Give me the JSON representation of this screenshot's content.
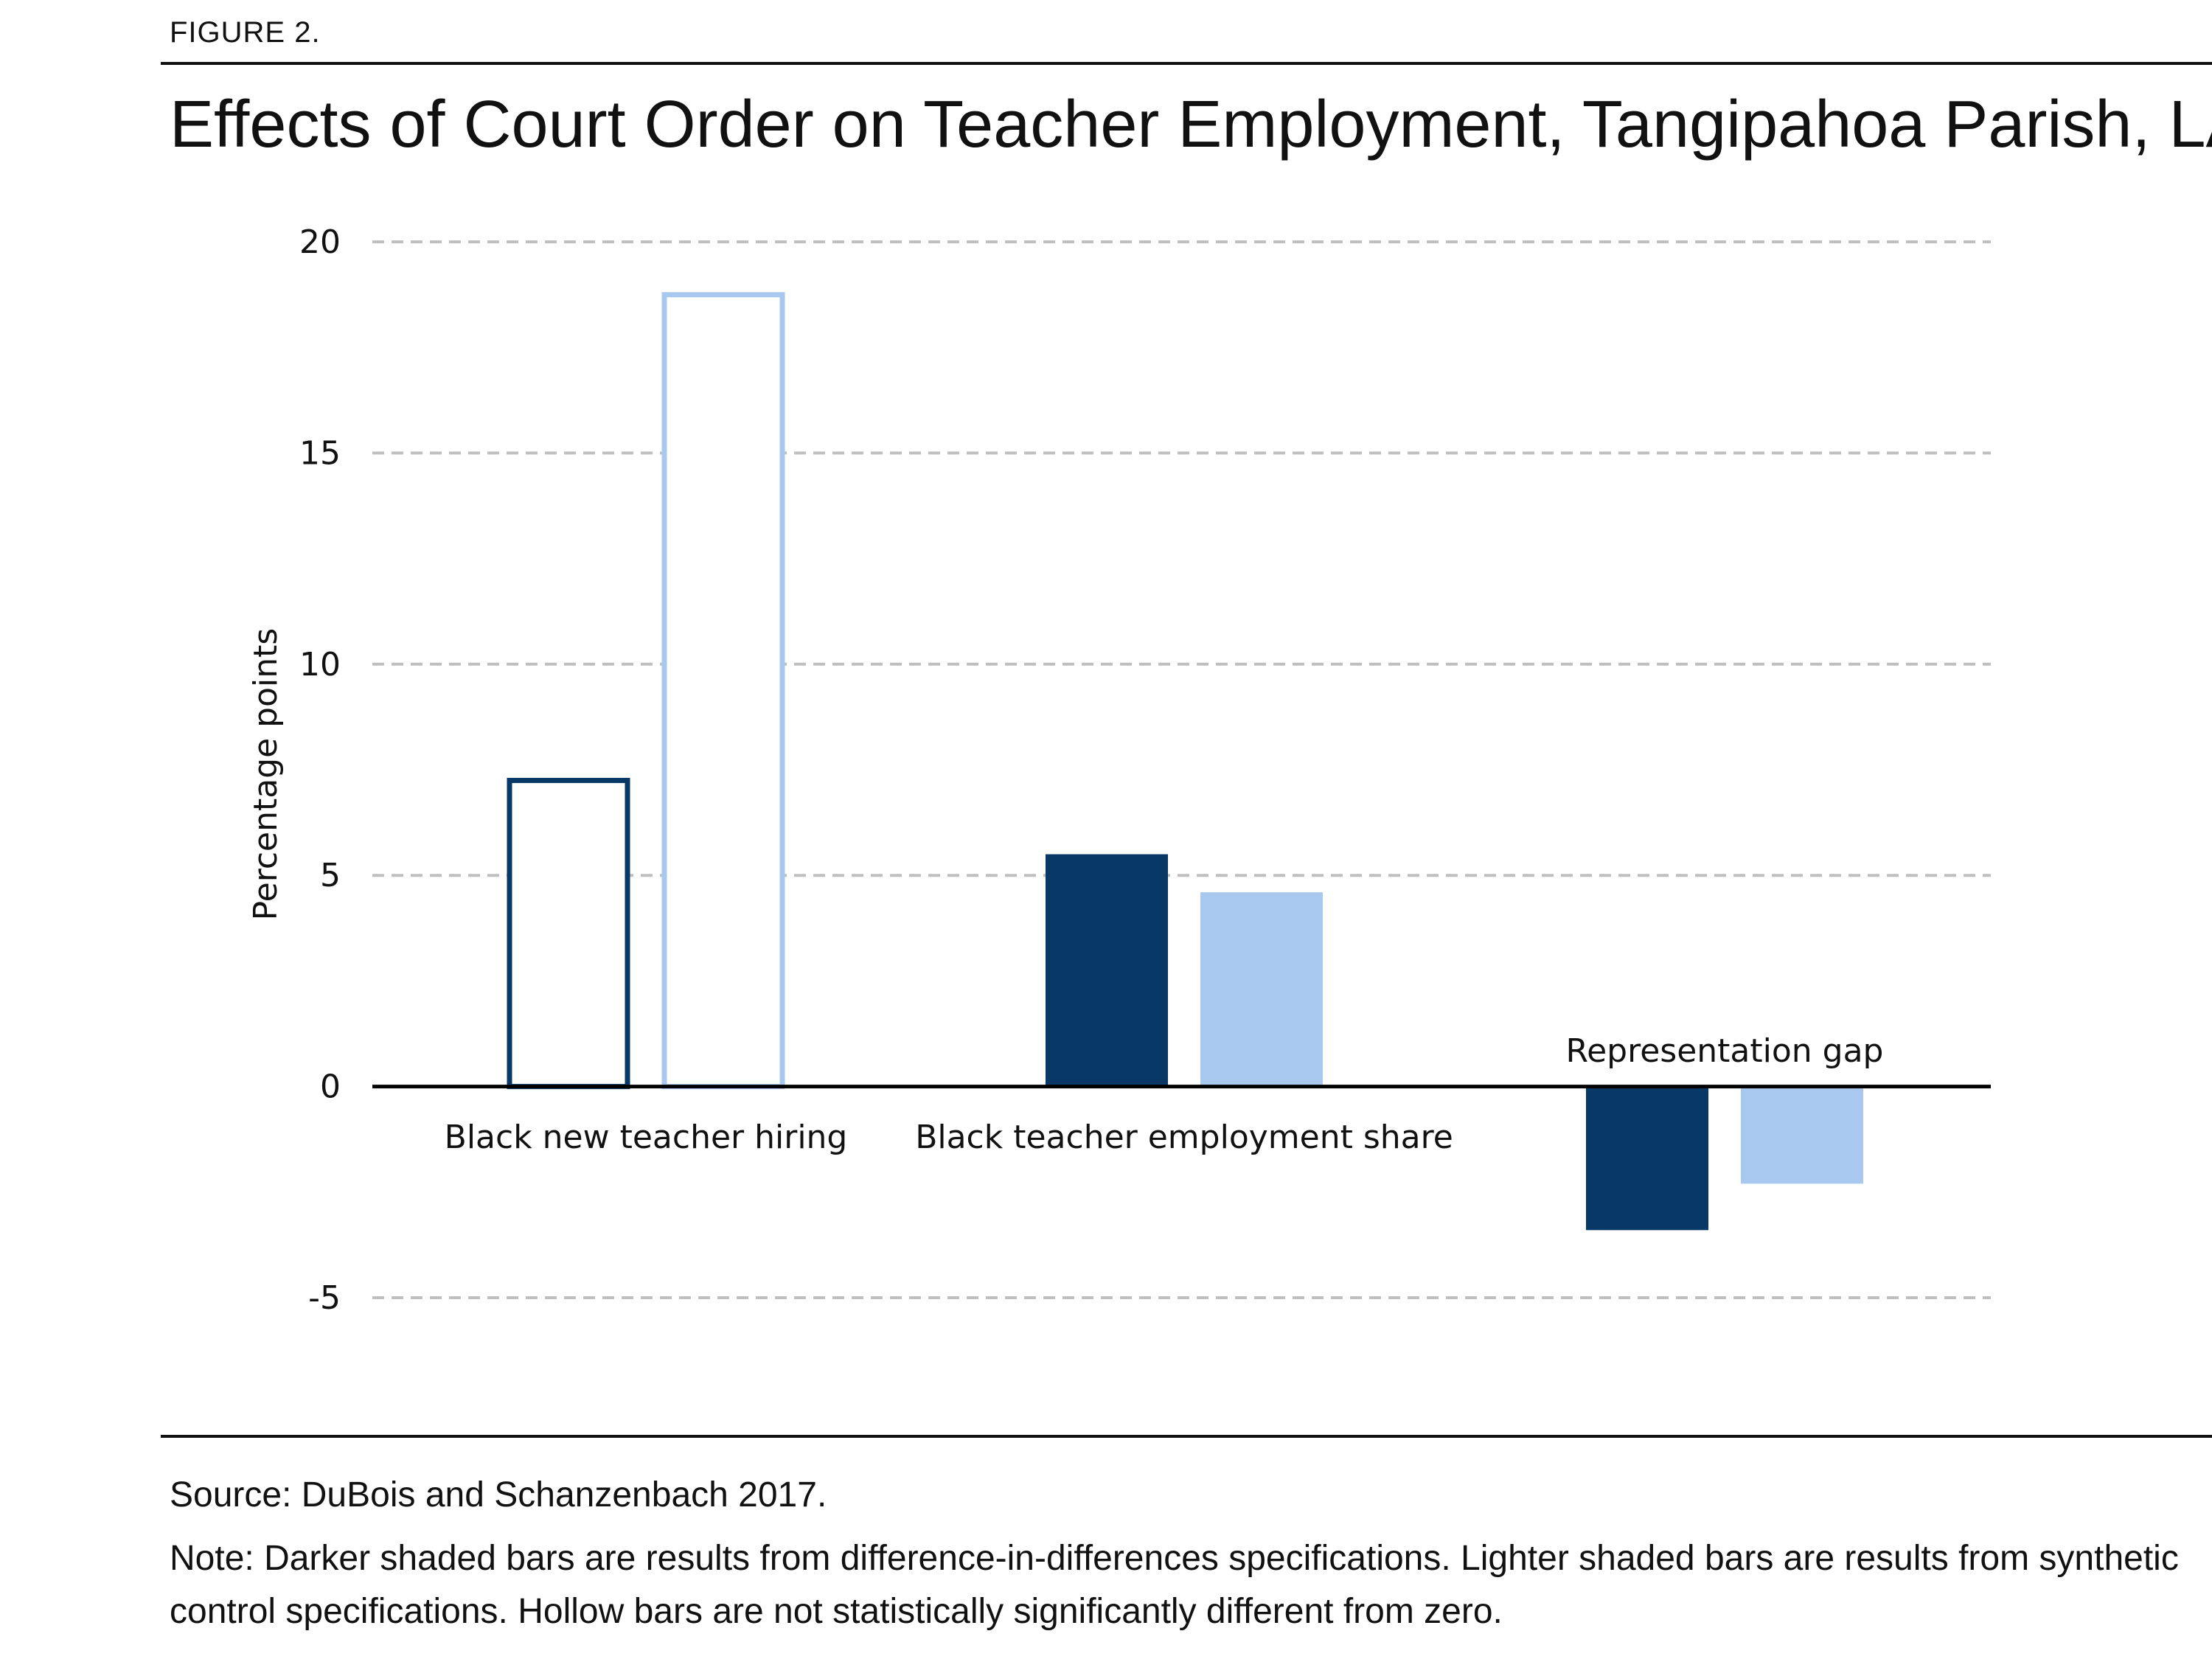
{
  "figure_label": "FIGURE 2.",
  "title": "Effects of Court Order on Teacher Employment, Tangipahoa Parish, LA",
  "source": "Source: DuBois and Schanzenbach 2017.",
  "note": "Note: Darker shaded bars are results from difference-in-differences specifications. Lighter shaded bars are results from synthetic control specifications. Hollow bars are not statistically significantly different from zero.",
  "colors": {
    "dark": "#083865",
    "light": "#a9c8ef",
    "grid": "#bfbfbf",
    "axis": "#000000"
  },
  "chart_data": {
    "type": "bar",
    "title": "",
    "xlabel": "",
    "ylabel": "Percentage points",
    "ylim": [
      -5,
      20
    ],
    "yticks": [
      20,
      15,
      10,
      5,
      0,
      -5
    ],
    "grid": true,
    "categories": [
      "Black new teacher hiring",
      "Black teacher employment share",
      "Representation gap"
    ],
    "series": [
      {
        "style": "dark",
        "values": [
          7.3,
          5.5,
          -3.4
        ],
        "hollow": [
          true,
          false,
          false
        ]
      },
      {
        "style": "light",
        "values": [
          18.8,
          4.6,
          -2.3
        ],
        "hollow": [
          true,
          false,
          false
        ]
      }
    ]
  }
}
